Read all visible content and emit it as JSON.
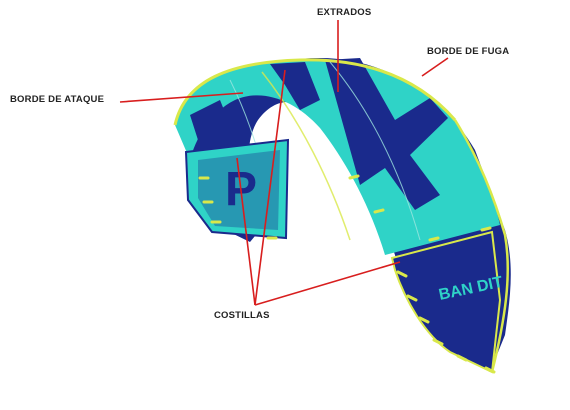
{
  "labels": {
    "extrados": "EXTRADOS",
    "borde_de_fuga": "BORDE DE FUGA",
    "borde_de_ataque": "BORDE DE ATAQUE",
    "costillas": "COSTILLAS"
  },
  "kite": {
    "left_tip_logo": "P",
    "right_tip_logo": "BAN DIT"
  },
  "colors": {
    "canopy_blue": "#1a2a8c",
    "canopy_cyan": "#2fd3c7",
    "strut_yellow": "#d9e84a",
    "pointer_red": "#d81e1e",
    "label_text": "#222222"
  }
}
